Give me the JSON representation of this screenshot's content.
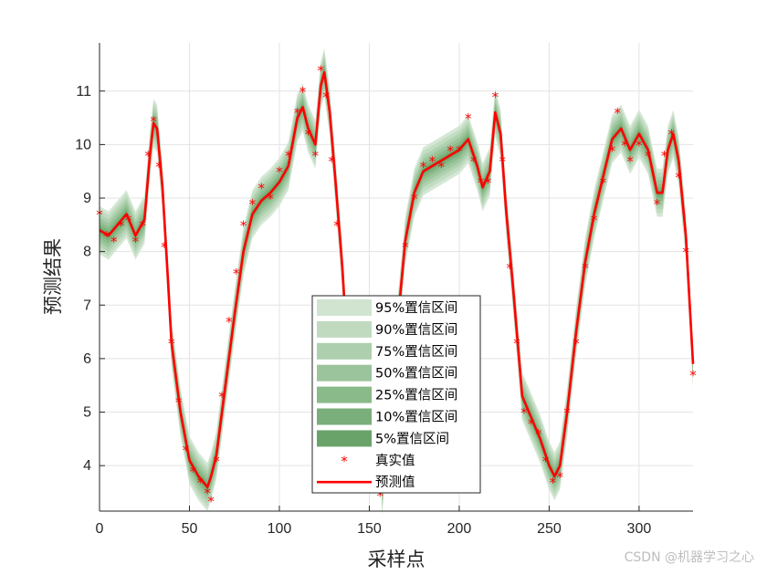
{
  "chart_data": {
    "type": "line",
    "title": "",
    "xlabel": "采样点",
    "ylabel": "预测结果",
    "xlim": [
      0,
      330
    ],
    "ylim": [
      3.15,
      11.9
    ],
    "xticks": [
      0,
      50,
      100,
      150,
      200,
      250,
      300
    ],
    "yticks": [
      4,
      5,
      6,
      7,
      8,
      9,
      10,
      11
    ],
    "grid": true,
    "legend_position": "bottom-center",
    "legend": [
      "95%置信区间",
      "90%置信区间",
      "75%置信区间",
      "50%置信区间",
      "25%置信区间",
      "10%置信区间",
      "5%置信区间",
      "真实值",
      "预测值"
    ],
    "band_colors": [
      "#d0e4d0",
      "#c0dac0",
      "#adcfad",
      "#9cc49c",
      "#8aba8a",
      "#7aae7a",
      "#6aa36a"
    ],
    "band_halfwidths": [
      0.45,
      0.38,
      0.3,
      0.23,
      0.16,
      0.1,
      0.05
    ],
    "series": [
      {
        "name": "真实值",
        "marker": "*",
        "color": "#ff0000",
        "x": [
          0,
          4,
          8,
          12,
          16,
          20,
          24,
          27,
          30,
          33,
          36,
          40,
          44,
          48,
          52,
          56,
          60,
          62,
          65,
          68,
          72,
          76,
          80,
          85,
          90,
          95,
          100,
          105,
          110,
          113,
          116,
          120,
          123,
          126,
          129,
          132,
          135
        ],
        "y": [
          8.7,
          8.3,
          8.2,
          8.5,
          8.6,
          8.2,
          8.5,
          9.8,
          10.45,
          9.6,
          8.1,
          6.3,
          5.2,
          4.3,
          3.9,
          3.7,
          3.5,
          3.35,
          4.1,
          5.3,
          6.7,
          7.6,
          8.5,
          8.9,
          9.2,
          9.0,
          9.5,
          9.8,
          10.6,
          11.0,
          10.2,
          9.8,
          11.4,
          10.9,
          9.7,
          8.5,
          6.6
        ]
      },
      {
        "name": "真实值",
        "marker": "*",
        "color": "#ff0000",
        "x": [
          156,
          160,
          165,
          170,
          175,
          180,
          185,
          190,
          195,
          200,
          205,
          208,
          212,
          216,
          220,
          224,
          228,
          232,
          236,
          240,
          244,
          248,
          252,
          256,
          260,
          265,
          270,
          275,
          280,
          285,
          288,
          292,
          295,
          300,
          305,
          310,
          314,
          318,
          322,
          326,
          330
        ],
        "y": [
          3.45,
          4.5,
          6.3,
          8.1,
          9.0,
          9.6,
          9.7,
          9.6,
          9.9,
          9.9,
          10.5,
          9.7,
          9.3,
          9.3,
          10.9,
          9.7,
          7.7,
          6.3,
          5.0,
          4.8,
          4.6,
          4.1,
          3.7,
          3.8,
          5.0,
          6.3,
          7.7,
          8.6,
          9.3,
          9.9,
          10.6,
          10.0,
          9.7,
          10.0,
          9.8,
          8.9,
          9.8,
          10.2,
          9.4,
          8.0,
          5.7
        ]
      },
      {
        "name": "预测值",
        "color": "#ff0000",
        "x": [
          0,
          5,
          10,
          15,
          20,
          25,
          28,
          30,
          32,
          35,
          38,
          40,
          45,
          50,
          55,
          60,
          62,
          65,
          70,
          75,
          80,
          85,
          90,
          95,
          100,
          105,
          110,
          113,
          116,
          120,
          123,
          125,
          128,
          131,
          135,
          137
        ],
        "y": [
          8.4,
          8.3,
          8.5,
          8.7,
          8.3,
          8.6,
          9.8,
          10.4,
          10.3,
          9.2,
          7.5,
          6.3,
          5.0,
          4.1,
          3.8,
          3.6,
          3.8,
          4.2,
          5.5,
          6.8,
          8.0,
          8.7,
          8.95,
          9.1,
          9.3,
          9.6,
          10.5,
          10.7,
          10.3,
          10.0,
          11.1,
          11.35,
          10.6,
          9.4,
          7.7,
          6.6
        ]
      },
      {
        "name": "预测值",
        "color": "#ff0000",
        "x": [
          157,
          160,
          165,
          170,
          175,
          180,
          185,
          190,
          195,
          200,
          205,
          210,
          213,
          217,
          220,
          223,
          226,
          230,
          235,
          240,
          245,
          250,
          253,
          256,
          260,
          265,
          270,
          275,
          280,
          285,
          290,
          295,
          300,
          305,
          310,
          313,
          316,
          319,
          322,
          326,
          330
        ],
        "y": [
          3.5,
          4.6,
          6.4,
          8.2,
          9.1,
          9.5,
          9.6,
          9.7,
          9.8,
          9.9,
          10.1,
          9.6,
          9.2,
          9.5,
          10.6,
          10.2,
          8.8,
          7.3,
          5.3,
          4.9,
          4.5,
          4.0,
          3.8,
          4.0,
          5.0,
          6.5,
          7.8,
          8.7,
          9.4,
          10.1,
          10.3,
          9.9,
          10.2,
          9.9,
          9.1,
          9.1,
          9.9,
          10.2,
          9.7,
          8.3,
          5.9
        ]
      }
    ]
  },
  "watermark": "CSDN @机器学习之心"
}
